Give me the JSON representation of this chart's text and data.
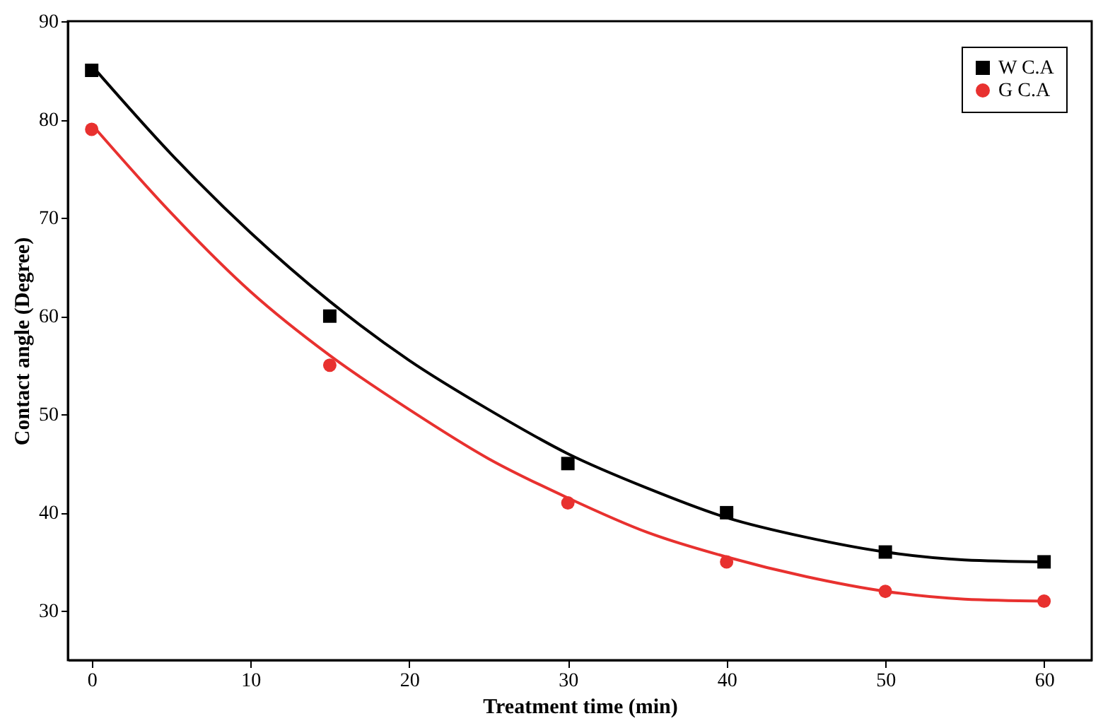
{
  "chart_data": {
    "type": "scatter",
    "xlabel": "Treatment time (min)",
    "ylabel": "Contact angle (Degree)",
    "xlim": [
      -1.5,
      63
    ],
    "xticks": [
      0,
      10,
      20,
      30,
      40,
      50,
      60
    ],
    "ylim": [
      25,
      90
    ],
    "yticks": [
      30,
      40,
      50,
      60,
      70,
      80,
      90
    ],
    "grid": false,
    "legend": "top right",
    "series": [
      {
        "name": "W C.A",
        "marker": "square",
        "color": "#000000",
        "x": [
          0,
          15,
          30,
          40,
          50,
          60
        ],
        "values": [
          85,
          60,
          45,
          40,
          36,
          35
        ]
      },
      {
        "name": "G C.A",
        "marker": "circle",
        "color": "#e8312f",
        "x": [
          0,
          15,
          30,
          40,
          50,
          60
        ],
        "values": [
          79,
          55,
          41,
          35,
          32,
          31
        ]
      },
      {
        "type": "line",
        "color": "#000000",
        "x": [
          0,
          5,
          10,
          15,
          20,
          25,
          30,
          35,
          40,
          45,
          50,
          55,
          60
        ],
        "values": [
          85.5,
          76.5,
          68.5,
          61.5,
          55.5,
          50.5,
          46,
          42.5,
          39.5,
          37.5,
          36,
          35.2,
          35
        ]
      },
      {
        "type": "line",
        "color": "#e8312f",
        "x": [
          0,
          5,
          10,
          15,
          20,
          25,
          30,
          35,
          40,
          45,
          50,
          55,
          60
        ],
        "values": [
          79.5,
          70.5,
          62.5,
          56,
          50.5,
          45.5,
          41.5,
          38,
          35.5,
          33.5,
          32,
          31.2,
          31
        ]
      }
    ]
  }
}
